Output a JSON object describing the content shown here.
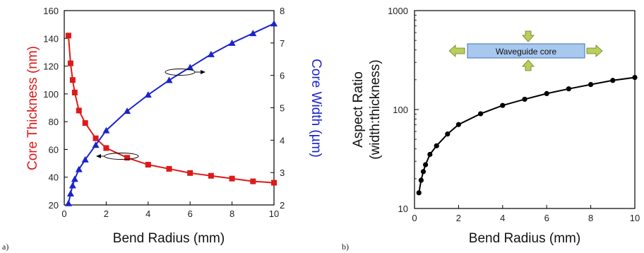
{
  "chart_data": [
    {
      "panel": "a)",
      "type": "line",
      "xlabel": "Bend Radius (mm)",
      "x_ticks": [
        "0",
        "2",
        "4",
        "6",
        "8",
        "10"
      ],
      "xlim": [
        0,
        10
      ],
      "grid": false,
      "y_left": {
        "label": "Core Thickness (nm)",
        "color": "#dd1a1a",
        "lim": [
          20,
          160
        ],
        "ticks": [
          "20",
          "40",
          "60",
          "80",
          "100",
          "120",
          "140",
          "160"
        ]
      },
      "y_right": {
        "label": "Core Width (µm)",
        "color": "#1a24cc",
        "lim": [
          2,
          8
        ],
        "ticks": [
          "2",
          "3",
          "4",
          "5",
          "6",
          "7",
          "8"
        ]
      },
      "series": [
        {
          "axis": "left",
          "marker": "square",
          "color": "#dd1a1a",
          "x": [
            0.2,
            0.3,
            0.4,
            0.5,
            0.7,
            1.0,
            1.5,
            2.0,
            3.0,
            4.0,
            5.0,
            6.0,
            7.0,
            8.0,
            9.0,
            10.0
          ],
          "y": [
            142,
            122,
            110,
            101,
            88,
            79,
            68,
            61,
            54,
            49,
            46,
            43,
            41,
            39,
            37,
            36
          ]
        },
        {
          "axis": "right",
          "marker": "triangle",
          "color": "#1a24cc",
          "x": [
            0.2,
            0.3,
            0.4,
            0.5,
            0.7,
            1.0,
            1.5,
            2.0,
            3.0,
            4.0,
            5.0,
            6.0,
            7.0,
            8.0,
            9.0,
            10.0
          ],
          "y": [
            2.05,
            2.35,
            2.6,
            2.8,
            3.1,
            3.4,
            3.85,
            4.3,
            4.9,
            5.4,
            5.85,
            6.25,
            6.65,
            7.0,
            7.3,
            7.6
          ]
        }
      ]
    },
    {
      "panel": "b)",
      "type": "line",
      "xlabel": "Bend Radius (mm)",
      "ylabel_line1": "Aspect Ratio",
      "ylabel_line2": "(width:thickness)",
      "xlim": [
        0,
        10
      ],
      "ylim": [
        10,
        1000
      ],
      "yscale": "log",
      "grid": false,
      "x_ticks": [
        "0",
        "2",
        "4",
        "6",
        "8",
        "10"
      ],
      "y_ticks": [
        "10",
        "100",
        "1000"
      ],
      "inset_label": "Waveguide core",
      "series": [
        {
          "marker": "circle",
          "color": "#000000",
          "x": [
            0.2,
            0.3,
            0.4,
            0.5,
            0.7,
            1.0,
            1.5,
            2.0,
            3.0,
            4.0,
            5.0,
            6.0,
            7.0,
            8.0,
            9.0,
            10.0
          ],
          "y": [
            14.4,
            19.3,
            23.6,
            27.7,
            35.2,
            43.0,
            56.6,
            70.5,
            90.7,
            110,
            127,
            145,
            162,
            179,
            197,
            211
          ]
        }
      ]
    }
  ],
  "colors": {
    "arrow_fill": "#b8cf5a",
    "core_fill": "#a8c8ee",
    "core_stroke": "#3a6fb5"
  }
}
